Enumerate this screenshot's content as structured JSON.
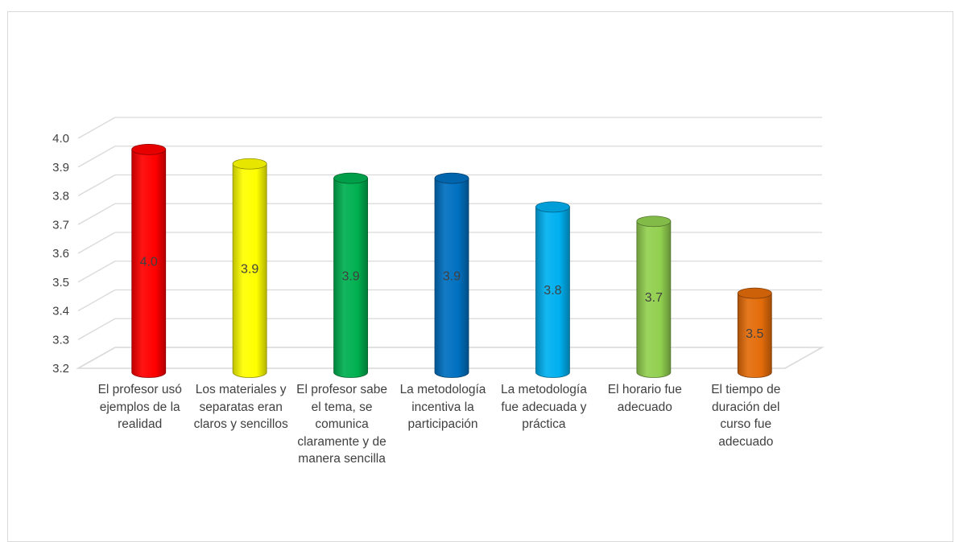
{
  "chart_data": {
    "type": "bar",
    "title": "",
    "xlabel": "",
    "ylabel": "",
    "ylim": [
      3.2,
      4.0
    ],
    "yticks": [
      "3.2",
      "3.3",
      "3.4",
      "3.5",
      "3.6",
      "3.7",
      "3.8",
      "3.9",
      "4.0"
    ],
    "grid": true,
    "style": "3d-cylinder",
    "categories": [
      "El profesor usó ejemplos de la realidad",
      "Los materiales y separatas eran claros y sencillos",
      "El profesor sabe el tema, se comunica claramente y de manera sencilla",
      "La metodología incentiva la participación",
      "La metodología fue adecuada y práctica",
      "El horario fue adecuado",
      "El tiempo de duración del curso fue adecuado"
    ],
    "values": [
      3.95,
      3.9,
      3.85,
      3.85,
      3.75,
      3.7,
      3.45
    ],
    "data_labels": [
      "4.0",
      "3.9",
      "3.9",
      "3.9",
      "3.8",
      "3.7",
      "3.5"
    ],
    "colors": [
      "#ff0000",
      "#ffff00",
      "#00b050",
      "#0070c0",
      "#00b0f0",
      "#92d050",
      "#e46c0a"
    ]
  }
}
